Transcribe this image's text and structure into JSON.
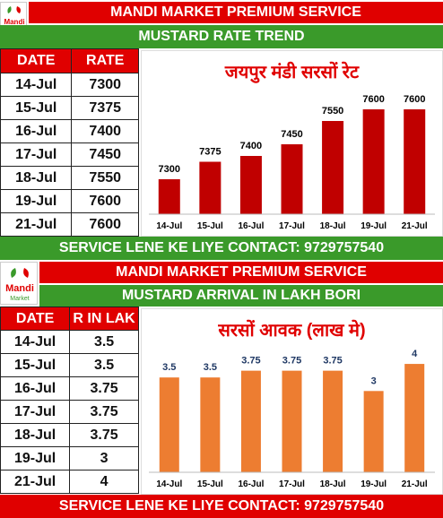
{
  "brand": {
    "logo_text": "Mandi",
    "logo_sub": "Market"
  },
  "colors": {
    "header_red": "#e00000",
    "banner_green": "#3a9a2a",
    "bar_red": "#c00000",
    "bar_orange": "#ed7d31"
  },
  "section1": {
    "header": "MANDI MARKET PREMIUM SERVICE",
    "subheader": "MUSTARD RATE TREND",
    "table": {
      "headers": [
        "DATE",
        "RATE"
      ],
      "rows": [
        [
          "14-Jul",
          "7300"
        ],
        [
          "15-Jul",
          "7375"
        ],
        [
          "16-Jul",
          "7400"
        ],
        [
          "17-Jul",
          "7450"
        ],
        [
          "18-Jul",
          "7550"
        ],
        [
          "19-Jul",
          "7600"
        ],
        [
          "21-Jul",
          "7600"
        ]
      ]
    },
    "footer": "SERVICE LENE KE LIYE CONTACT: 9729757540"
  },
  "section2": {
    "header": "MANDI MARKET PREMIUM SERVICE",
    "subheader": "MUSTARD ARRIVAL IN LAKH BORI",
    "table": {
      "headers": [
        "DATE",
        "R IN LAK"
      ],
      "rows": [
        [
          "14-Jul",
          "3.5"
        ],
        [
          "15-Jul",
          "3.5"
        ],
        [
          "16-Jul",
          "3.75"
        ],
        [
          "17-Jul",
          "3.75"
        ],
        [
          "18-Jul",
          "3.75"
        ],
        [
          "19-Jul",
          "3"
        ],
        [
          "21-Jul",
          "4"
        ]
      ]
    },
    "footer": "SERVICE LENE KE LIYE CONTACT: 9729757540"
  },
  "chart_data": [
    {
      "type": "bar",
      "title": "जयपुर मंडी सरसों रेट",
      "categories": [
        "14-Jul",
        "15-Jul",
        "16-Jul",
        "17-Jul",
        "18-Jul",
        "19-Jul",
        "21-Jul"
      ],
      "values": [
        7300,
        7375,
        7400,
        7450,
        7550,
        7600,
        7600
      ],
      "ylim": [
        7150,
        7650
      ],
      "color": "#c00000",
      "label_color": "#000000",
      "grid": false
    },
    {
      "type": "bar",
      "title": "सरसों आवक (लाख मे)",
      "categories": [
        "14-Jul",
        "15-Jul",
        "16-Jul",
        "17-Jul",
        "18-Jul",
        "19-Jul",
        "21-Jul"
      ],
      "values": [
        3.5,
        3.5,
        3.75,
        3.75,
        3.75,
        3,
        4
      ],
      "ylim": [
        0,
        4.3
      ],
      "color": "#ed7d31",
      "label_color": "#1f3864",
      "grid": false
    }
  ]
}
